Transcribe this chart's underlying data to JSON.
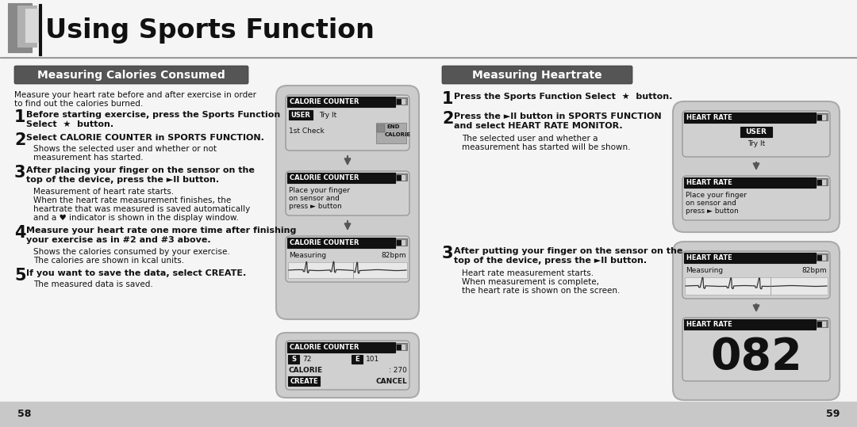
{
  "title": "Using Sports Function",
  "bg_color": "#f5f5f5",
  "left_section_title": "Measuring Calories Consumed",
  "right_section_title": "Measuring Heartrate",
  "page_numbers": [
    "58",
    "59"
  ]
}
